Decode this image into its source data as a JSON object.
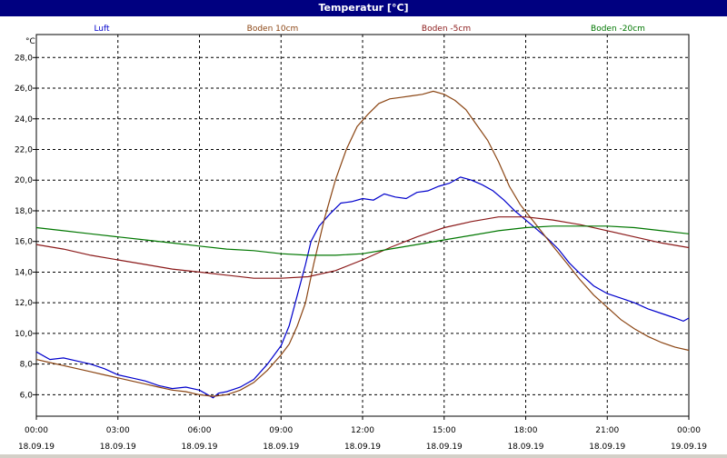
{
  "window": {
    "title": "Temperatur [°C]"
  },
  "chart_data": {
    "type": "line",
    "title": "Temperatur [°C]",
    "ylabel": "°C",
    "xlabel": "",
    "ylim": [
      4.6,
      29.5
    ],
    "xlim": [
      0,
      24
    ],
    "grid": true,
    "legend_position": "top",
    "y_ticks": [
      "6,0",
      "8,0",
      "10,0",
      "12,0",
      "14,0",
      "16,0",
      "18,0",
      "20,0",
      "22,0",
      "24,0",
      "26,0",
      "28,0"
    ],
    "x_ticks": [
      {
        "time": "00:00",
        "date": "18.09.19"
      },
      {
        "time": "03:00",
        "date": "18.09.19"
      },
      {
        "time": "06:00",
        "date": "18.09.19"
      },
      {
        "time": "09:00",
        "date": "18.09.19"
      },
      {
        "time": "12:00",
        "date": "18.09.19"
      },
      {
        "time": "15:00",
        "date": "18.09.19"
      },
      {
        "time": "18:00",
        "date": "18.09.19"
      },
      {
        "time": "21:00",
        "date": "18.09.19"
      },
      {
        "time": "00:00",
        "date": "19.09.19"
      }
    ],
    "series": [
      {
        "name": "Luft",
        "color": "#0000cc",
        "points": [
          [
            0,
            8.8
          ],
          [
            0.5,
            8.3
          ],
          [
            1,
            8.4
          ],
          [
            1.5,
            8.2
          ],
          [
            2,
            8.0
          ],
          [
            2.5,
            7.7
          ],
          [
            3,
            7.3
          ],
          [
            3.5,
            7.1
          ],
          [
            4,
            6.9
          ],
          [
            4.5,
            6.6
          ],
          [
            5,
            6.4
          ],
          [
            5.5,
            6.5
          ],
          [
            6,
            6.3
          ],
          [
            6.2,
            6.1
          ],
          [
            6.5,
            5.8
          ],
          [
            6.7,
            6.1
          ],
          [
            7,
            6.2
          ],
          [
            7.5,
            6.5
          ],
          [
            8,
            7.0
          ],
          [
            8.5,
            8.0
          ],
          [
            9,
            9.2
          ],
          [
            9.3,
            10.5
          ],
          [
            9.6,
            12.5
          ],
          [
            9.9,
            14.5
          ],
          [
            10.1,
            16.0
          ],
          [
            10.4,
            17.0
          ],
          [
            10.8,
            17.8
          ],
          [
            11.2,
            18.5
          ],
          [
            11.6,
            18.6
          ],
          [
            12,
            18.8
          ],
          [
            12.4,
            18.7
          ],
          [
            12.8,
            19.1
          ],
          [
            13.2,
            18.9
          ],
          [
            13.6,
            18.8
          ],
          [
            14,
            19.2
          ],
          [
            14.4,
            19.3
          ],
          [
            14.8,
            19.6
          ],
          [
            15.2,
            19.8
          ],
          [
            15.6,
            20.2
          ],
          [
            16,
            20.0
          ],
          [
            16.4,
            19.7
          ],
          [
            16.8,
            19.3
          ],
          [
            17.2,
            18.7
          ],
          [
            17.6,
            18.0
          ],
          [
            18,
            17.4
          ],
          [
            18.4,
            16.8
          ],
          [
            18.8,
            16.2
          ],
          [
            19.2,
            15.5
          ],
          [
            19.6,
            14.6
          ],
          [
            20,
            13.9
          ],
          [
            20.5,
            13.1
          ],
          [
            21,
            12.6
          ],
          [
            21.5,
            12.3
          ],
          [
            22,
            12.0
          ],
          [
            22.5,
            11.6
          ],
          [
            23,
            11.3
          ],
          [
            23.5,
            11.0
          ],
          [
            23.8,
            10.8
          ],
          [
            24,
            11.0
          ]
        ]
      },
      {
        "name": "Boden 10cm",
        "color": "#8b4513",
        "points": [
          [
            0,
            8.3
          ],
          [
            0.5,
            8.1
          ],
          [
            1,
            7.9
          ],
          [
            1.5,
            7.7
          ],
          [
            2,
            7.5
          ],
          [
            2.5,
            7.3
          ],
          [
            3,
            7.1
          ],
          [
            3.5,
            6.9
          ],
          [
            4,
            6.7
          ],
          [
            4.5,
            6.5
          ],
          [
            5,
            6.3
          ],
          [
            5.5,
            6.2
          ],
          [
            6,
            6.0
          ],
          [
            6.5,
            5.9
          ],
          [
            7,
            6.0
          ],
          [
            7.5,
            6.3
          ],
          [
            8,
            6.8
          ],
          [
            8.5,
            7.6
          ],
          [
            9,
            8.6
          ],
          [
            9.3,
            9.3
          ],
          [
            9.6,
            10.5
          ],
          [
            9.9,
            12.0
          ],
          [
            10.2,
            14.5
          ],
          [
            10.6,
            17.5
          ],
          [
            11,
            20.0
          ],
          [
            11.4,
            22.0
          ],
          [
            11.8,
            23.5
          ],
          [
            12.2,
            24.3
          ],
          [
            12.6,
            25.0
          ],
          [
            13,
            25.3
          ],
          [
            13.4,
            25.4
          ],
          [
            13.8,
            25.5
          ],
          [
            14.2,
            25.6
          ],
          [
            14.6,
            25.8
          ],
          [
            15,
            25.6
          ],
          [
            15.4,
            25.2
          ],
          [
            15.8,
            24.6
          ],
          [
            16.2,
            23.6
          ],
          [
            16.6,
            22.6
          ],
          [
            17,
            21.2
          ],
          [
            17.4,
            19.6
          ],
          [
            17.8,
            18.4
          ],
          [
            18.2,
            17.5
          ],
          [
            18.6,
            16.6
          ],
          [
            19,
            15.7
          ],
          [
            19.5,
            14.6
          ],
          [
            20,
            13.5
          ],
          [
            20.5,
            12.5
          ],
          [
            21,
            11.7
          ],
          [
            21.5,
            10.9
          ],
          [
            22,
            10.3
          ],
          [
            22.5,
            9.8
          ],
          [
            23,
            9.4
          ],
          [
            23.5,
            9.1
          ],
          [
            24,
            8.9
          ]
        ]
      },
      {
        "name": "Boden -5cm",
        "color": "#8b1a1a",
        "points": [
          [
            0,
            15.8
          ],
          [
            1,
            15.5
          ],
          [
            2,
            15.1
          ],
          [
            3,
            14.8
          ],
          [
            4,
            14.5
          ],
          [
            5,
            14.2
          ],
          [
            6,
            14.0
          ],
          [
            7,
            13.8
          ],
          [
            8,
            13.6
          ],
          [
            9,
            13.6
          ],
          [
            10,
            13.7
          ],
          [
            11,
            14.1
          ],
          [
            12,
            14.8
          ],
          [
            13,
            15.6
          ],
          [
            14,
            16.3
          ],
          [
            15,
            16.9
          ],
          [
            16,
            17.3
          ],
          [
            17,
            17.6
          ],
          [
            18,
            17.6
          ],
          [
            19,
            17.4
          ],
          [
            20,
            17.1
          ],
          [
            21,
            16.7
          ],
          [
            22,
            16.3
          ],
          [
            23,
            15.9
          ],
          [
            24,
            15.6
          ]
        ]
      },
      {
        "name": "Boden -20cm",
        "color": "#007700",
        "points": [
          [
            0,
            16.9
          ],
          [
            1,
            16.7
          ],
          [
            2,
            16.5
          ],
          [
            3,
            16.3
          ],
          [
            4,
            16.1
          ],
          [
            5,
            15.9
          ],
          [
            6,
            15.7
          ],
          [
            7,
            15.5
          ],
          [
            8,
            15.4
          ],
          [
            9,
            15.2
          ],
          [
            10,
            15.1
          ],
          [
            11,
            15.1
          ],
          [
            12,
            15.2
          ],
          [
            13,
            15.5
          ],
          [
            14,
            15.8
          ],
          [
            15,
            16.1
          ],
          [
            16,
            16.4
          ],
          [
            17,
            16.7
          ],
          [
            18,
            16.9
          ],
          [
            19,
            17.0
          ],
          [
            20,
            17.0
          ],
          [
            21,
            17.0
          ],
          [
            22,
            16.9
          ],
          [
            23,
            16.7
          ],
          [
            24,
            16.5
          ]
        ]
      }
    ]
  }
}
